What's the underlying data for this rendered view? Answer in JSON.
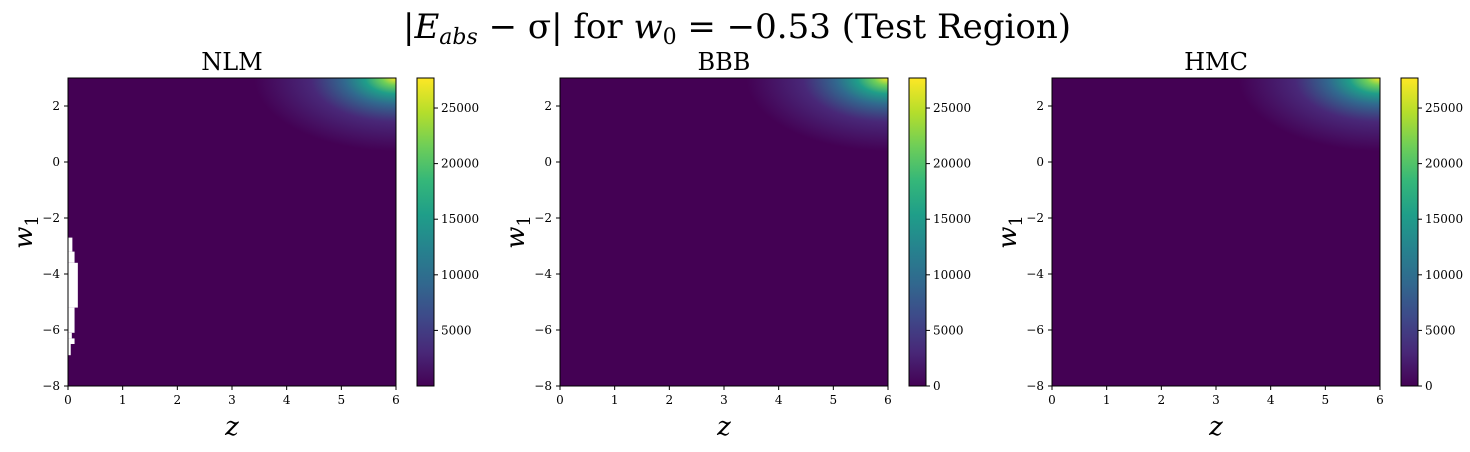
{
  "figure": {
    "title": "|E_abs − σ| for w_0 = −0.53 (Test Region)",
    "title_parts": {
      "bar_open": "|",
      "E": "E",
      "abs": "abs",
      "minus_sigma": " − σ",
      "bar_close": "|",
      "for": " for ",
      "w": "w",
      "zero": "0",
      "eq_value": " = −0.53 ",
      "region": "(Test Region)"
    }
  },
  "colormap": {
    "name": "viridis",
    "stops": [
      "#440154",
      "#482878",
      "#3e4989",
      "#31688e",
      "#26828e",
      "#1f9e89",
      "#35b779",
      "#6ece58",
      "#b5de2b",
      "#fde725"
    ]
  },
  "chart_data": [
    {
      "type": "heatmap",
      "title": "NLM",
      "xlabel": "z",
      "ylabel_main": "w",
      "ylabel_sub": "1",
      "xlim": [
        0,
        6
      ],
      "ylim": [
        -8,
        3
      ],
      "x_ticks": [
        "0",
        "1",
        "2",
        "3",
        "4",
        "5",
        "6"
      ],
      "y_ticks": [
        "−8",
        "−6",
        "−4",
        "−2",
        "0",
        "2"
      ],
      "colorbar_range": [
        0,
        27700
      ],
      "colorbar_ticks": [
        "5000",
        "10000",
        "15000",
        "20000",
        "25000"
      ],
      "max_value": 27700,
      "peak_region": "top-right",
      "missing_values": "white (NaN) patches at small z for w1 between about −6.9 and −2.7"
    },
    {
      "type": "heatmap",
      "title": "BBB",
      "xlabel": "z",
      "ylabel_main": "w",
      "ylabel_sub": "1",
      "xlim": [
        0,
        6
      ],
      "ylim": [
        -8,
        3
      ],
      "x_ticks": [
        "0",
        "1",
        "2",
        "3",
        "4",
        "5",
        "6"
      ],
      "y_ticks": [
        "−8",
        "−6",
        "−4",
        "−2",
        "0",
        "2"
      ],
      "colorbar_range": [
        0,
        27700
      ],
      "colorbar_ticks": [
        "0",
        "5000",
        "10000",
        "15000",
        "20000",
        "25000"
      ],
      "max_value": 27700,
      "peak_region": "top-right"
    },
    {
      "type": "heatmap",
      "title": "HMC",
      "xlabel": "z",
      "ylabel_main": "w",
      "ylabel_sub": "1",
      "xlim": [
        0,
        6
      ],
      "ylim": [
        -8,
        3
      ],
      "x_ticks": [
        "0",
        "1",
        "2",
        "3",
        "4",
        "5",
        "6"
      ],
      "y_ticks": [
        "−8",
        "−6",
        "−4",
        "−2",
        "0",
        "2"
      ],
      "colorbar_range": [
        0,
        27700
      ],
      "colorbar_ticks": [
        "0",
        "5000",
        "10000",
        "15000",
        "20000",
        "25000"
      ],
      "max_value": 27700,
      "peak_region": "top-right"
    }
  ]
}
